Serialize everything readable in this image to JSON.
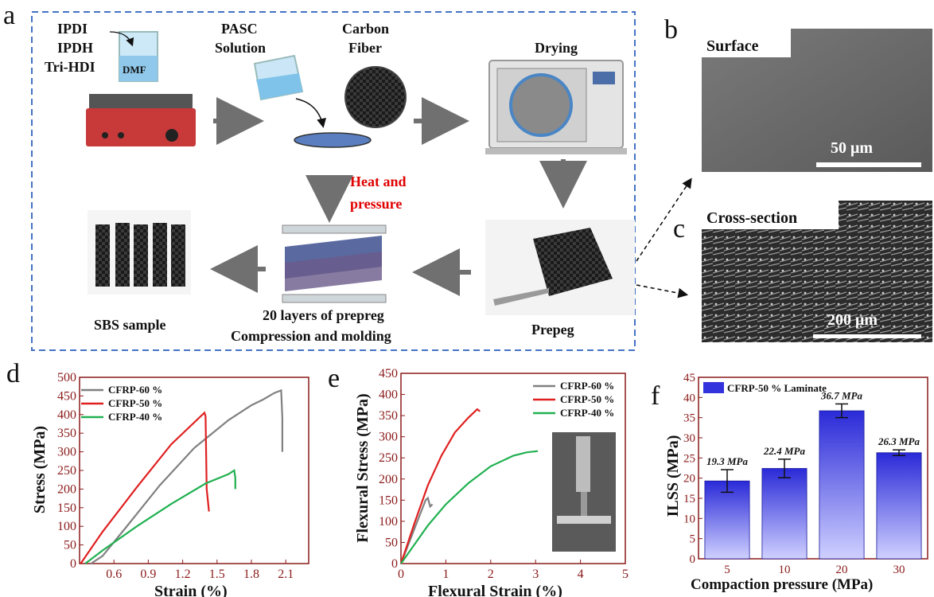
{
  "panel_letters": {
    "a": "a",
    "b": "b",
    "c": "c",
    "d": "d",
    "e": "e",
    "f": "f"
  },
  "schematic": {
    "reagents": [
      "IPDI",
      "IPDH",
      "Tri-HDI"
    ],
    "beaker_label": "DMF",
    "pasc_label": [
      "PASC",
      "Solution"
    ],
    "carbon_label": [
      "Carbon",
      "Fiber"
    ],
    "drying_label": "Drying",
    "heat_label": [
      "Heat and",
      "pressure"
    ],
    "prepreg_label": "Prepeg",
    "compression_label": [
      "20 layers of prepreg",
      "Compression and molding"
    ],
    "sbs_label": "SBS sample",
    "colors": {
      "frame": "#4472c4",
      "heat": "#e00000",
      "arrow": "#707070"
    }
  },
  "sem": {
    "surface_label": "Surface",
    "surface_scale": "50 μm",
    "cross_label": "Cross-section",
    "cross_scale": "200 μm"
  },
  "chart_data": [
    {
      "type": "line",
      "panel": "d",
      "xlabel": "Strain (%)",
      "ylabel": "Stress (MPa)",
      "xlim": [
        0.3,
        2.3
      ],
      "ylim": [
        0,
        500
      ],
      "xticks": [
        "0.6",
        "0.9",
        "1.2",
        "1.5",
        "1.8",
        "2.1"
      ],
      "yticks": [
        "0",
        "50",
        "100",
        "150",
        "200",
        "250",
        "300",
        "350",
        "400",
        "450",
        "500"
      ],
      "legend_position": "top-left",
      "series": [
        {
          "name": "CFRP-60 %",
          "color": "#808080",
          "x": [
            0.4,
            0.5,
            0.7,
            1.0,
            1.3,
            1.6,
            1.8,
            1.9,
            2.0,
            2.06,
            2.07,
            2.07
          ],
          "y": [
            0,
            20,
            95,
            210,
            310,
            385,
            425,
            440,
            458,
            465,
            390,
            300
          ]
        },
        {
          "name": "CFRP-50 %",
          "color": "#e02020",
          "x": [
            0.31,
            0.5,
            0.8,
            1.1,
            1.39,
            1.4,
            1.41,
            1.43
          ],
          "y": [
            0,
            85,
            205,
            320,
            405,
            395,
            200,
            140
          ]
        },
        {
          "name": "CFRP-40 %",
          "color": "#20b050",
          "x": [
            0.35,
            0.5,
            0.8,
            1.1,
            1.4,
            1.6,
            1.65,
            1.66,
            1.66
          ],
          "y": [
            0,
            35,
            100,
            160,
            215,
            240,
            250,
            230,
            200
          ]
        }
      ]
    },
    {
      "type": "line",
      "panel": "e",
      "xlabel": "Flexural Strain (%)",
      "ylabel": "Flexural Stress (MPa)",
      "xlim": [
        0,
        5
      ],
      "ylim": [
        0,
        450
      ],
      "xticks": [
        "0",
        "1",
        "2",
        "3",
        "4",
        "5"
      ],
      "yticks": [
        "0",
        "50",
        "100",
        "150",
        "200",
        "250",
        "300",
        "350",
        "400",
        "450"
      ],
      "legend_position": "top-right",
      "series": [
        {
          "name": "CFRP-60 %",
          "color": "#808080",
          "x": [
            0.0,
            0.2,
            0.4,
            0.55,
            0.6,
            0.65,
            0.7
          ],
          "y": [
            0,
            55,
            110,
            150,
            155,
            135,
            140
          ]
        },
        {
          "name": "CFRP-50 %",
          "color": "#e02020",
          "x": [
            0.0,
            0.3,
            0.6,
            0.9,
            1.2,
            1.5,
            1.7,
            1.76
          ],
          "y": [
            0,
            95,
            185,
            255,
            310,
            345,
            365,
            360
          ]
        },
        {
          "name": "CFRP-40 %",
          "color": "#20b050",
          "x": [
            0.0,
            0.3,
            0.6,
            1.0,
            1.5,
            2.0,
            2.5,
            2.8,
            3.05
          ],
          "y": [
            0,
            45,
            90,
            140,
            190,
            230,
            255,
            263,
            266
          ]
        }
      ]
    },
    {
      "type": "bar",
      "panel": "f",
      "xlabel": "Compaction pressure (MPa)",
      "ylabel": "ILSS (MPa)",
      "ylim": [
        0,
        45
      ],
      "yticks": [
        "0",
        "5",
        "10",
        "15",
        "20",
        "25",
        "30",
        "35",
        "40",
        "45"
      ],
      "categories": [
        "5",
        "10",
        "20",
        "30"
      ],
      "series": [
        {
          "name": "CFRP-50 % Laminate",
          "values": [
            19.3,
            22.4,
            36.7,
            26.3
          ],
          "errors": [
            2.8,
            2.3,
            1.7,
            0.7
          ]
        }
      ],
      "data_labels": [
        "19.3 MPa",
        "22.4 MPa",
        "36.7 MPa",
        "26.3 MPa"
      ],
      "bar_color": "#3333dd",
      "legend_position": "top-left"
    }
  ]
}
